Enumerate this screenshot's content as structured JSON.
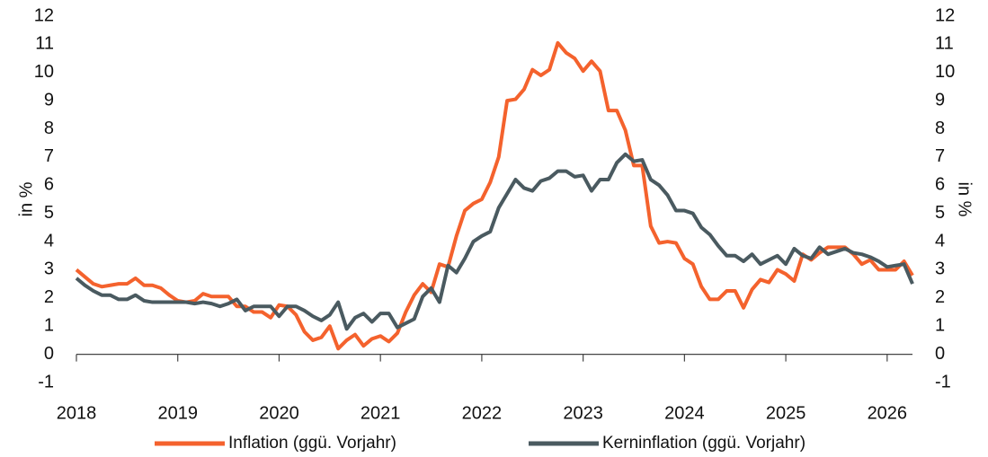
{
  "chart_data": {
    "type": "line",
    "ylabel": "in %",
    "y2label": "in %",
    "x": [
      2018,
      2018.083,
      2018.167,
      2018.25,
      2018.333,
      2018.417,
      2018.5,
      2018.583,
      2018.667,
      2018.75,
      2018.833,
      2018.917,
      2019,
      2019.083,
      2019.167,
      2019.25,
      2019.333,
      2019.417,
      2019.5,
      2019.583,
      2019.667,
      2019.75,
      2019.833,
      2019.917,
      2020,
      2020.083,
      2020.167,
      2020.25,
      2020.333,
      2020.417,
      2020.5,
      2020.583,
      2020.667,
      2020.75,
      2020.833,
      2020.917,
      2021,
      2021.083,
      2021.167,
      2021.25,
      2021.333,
      2021.417,
      2021.5,
      2021.583,
      2021.667,
      2021.75,
      2021.833,
      2021.917,
      2022,
      2022.083,
      2022.167,
      2022.25,
      2022.333,
      2022.417,
      2022.5,
      2022.583,
      2022.667,
      2022.75,
      2022.833,
      2022.917,
      2023,
      2023.083,
      2023.167,
      2023.25,
      2023.333,
      2023.417,
      2023.5,
      2023.583,
      2023.667,
      2023.75,
      2023.833,
      2023.917,
      2024,
      2024.083,
      2024.167,
      2024.25,
      2024.333,
      2024.417,
      2024.5,
      2024.583,
      2024.667,
      2024.75,
      2024.833,
      2024.917,
      2025,
      2025.083,
      2025.167,
      2025.25,
      2025.333,
      2025.417,
      2025.5,
      2025.583,
      2025.667,
      2025.75,
      2025.833,
      2025.917,
      2026,
      2026.083,
      2026.167,
      2026.25
    ],
    "series": [
      {
        "name": "Inflation (ggü. Vorjahr)",
        "color": "#f4622d",
        "values": [
          3.0,
          2.75,
          2.5,
          2.4,
          2.45,
          2.5,
          2.5,
          2.7,
          2.45,
          2.45,
          2.35,
          2.1,
          1.9,
          1.85,
          1.9,
          2.15,
          2.05,
          2.05,
          2.05,
          1.7,
          1.7,
          1.5,
          1.5,
          1.3,
          1.75,
          1.7,
          1.4,
          0.8,
          0.5,
          0.6,
          1.0,
          0.2,
          0.5,
          0.7,
          0.3,
          0.55,
          0.65,
          0.45,
          0.75,
          1.5,
          2.1,
          2.5,
          2.2,
          3.2,
          3.1,
          4.2,
          5.1,
          5.35,
          5.5,
          6.1,
          7.0,
          9.0,
          9.05,
          9.4,
          10.1,
          9.9,
          10.1,
          11.05,
          10.7,
          10.5,
          10.05,
          10.4,
          10.05,
          8.65,
          8.65,
          7.95,
          6.7,
          6.7,
          4.55,
          3.95,
          4.0,
          3.95,
          3.4,
          3.2,
          2.4,
          1.95,
          1.95,
          2.25,
          2.25,
          1.65,
          2.3,
          2.65,
          2.55,
          3.0,
          2.85,
          2.6,
          3.55,
          3.35,
          3.6,
          3.8,
          3.8,
          3.8,
          3.55,
          3.2,
          3.35,
          3.0,
          3.0,
          3.0,
          3.3,
          2.8
        ]
      },
      {
        "name": "Kerninflation (ggü. Vorjahr)",
        "color": "#4a5a60",
        "values": [
          2.7,
          2.45,
          2.25,
          2.1,
          2.1,
          1.95,
          1.95,
          2.1,
          1.9,
          1.85,
          1.85,
          1.85,
          1.85,
          1.85,
          1.8,
          1.85,
          1.8,
          1.7,
          1.8,
          1.95,
          1.55,
          1.7,
          1.7,
          1.7,
          1.35,
          1.7,
          1.7,
          1.55,
          1.35,
          1.2,
          1.4,
          1.85,
          0.9,
          1.3,
          1.45,
          1.15,
          1.45,
          1.45,
          0.95,
          1.1,
          1.25,
          2.05,
          2.35,
          1.85,
          3.15,
          2.9,
          3.4,
          4.0,
          4.2,
          4.35,
          5.2,
          5.7,
          6.2,
          5.9,
          5.8,
          6.15,
          6.25,
          6.5,
          6.5,
          6.3,
          6.35,
          5.8,
          6.2,
          6.2,
          6.8,
          7.1,
          6.85,
          6.9,
          6.2,
          6.0,
          5.65,
          5.1,
          5.1,
          5.0,
          4.5,
          4.25,
          3.85,
          3.5,
          3.5,
          3.3,
          3.55,
          3.2,
          3.35,
          3.5,
          3.2,
          3.75,
          3.5,
          3.4,
          3.8,
          3.55,
          3.65,
          3.75,
          3.6,
          3.55,
          3.45,
          3.3,
          3.1,
          3.15,
          3.2,
          2.5
        ]
      }
    ],
    "xlim": [
      2018,
      2026.25
    ],
    "xticks": [
      2018,
      2019,
      2020,
      2021,
      2022,
      2023,
      2024,
      2025,
      2026
    ],
    "ylim": [
      -1,
      12
    ],
    "yticks": [
      -1,
      0,
      1,
      2,
      3,
      4,
      5,
      6,
      7,
      8,
      9,
      10,
      11,
      12
    ],
    "y2lim": [
      -1,
      12
    ],
    "y2ticks": [
      -1,
      0,
      1,
      2,
      3,
      4,
      5,
      6,
      7,
      8,
      9,
      10,
      11,
      12
    ],
    "grid": false,
    "legend": "bottom"
  }
}
